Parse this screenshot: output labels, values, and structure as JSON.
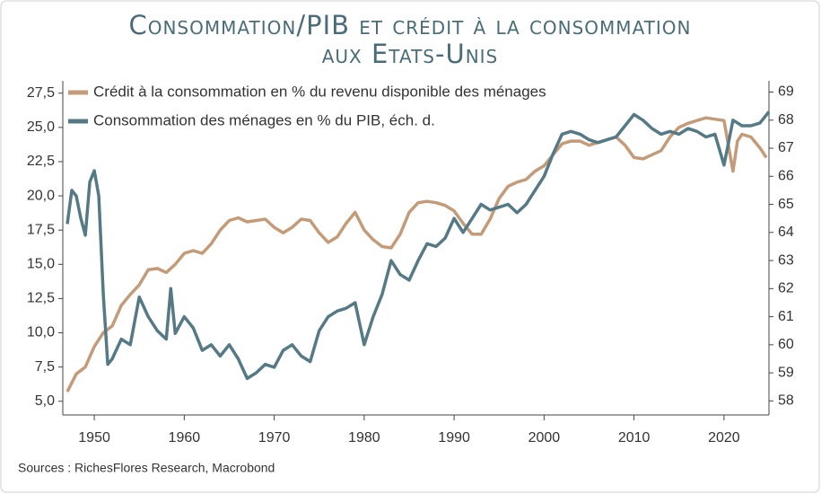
{
  "chart_data": {
    "type": "line",
    "title": [
      "Consommation/PIB et crédit à la consommation",
      "aux Etats-Unis"
    ],
    "source": "Sources : RichesFlores Research, Macrobond",
    "xlim": [
      1946.5,
      2025
    ],
    "xticks": [
      1950,
      1960,
      1970,
      1980,
      1990,
      2000,
      2010,
      2020
    ],
    "ylim": [
      4.0,
      28.4
    ],
    "yticks": [
      {
        "value": 5,
        "label": "5,0"
      },
      {
        "value": 7.5,
        "label": "7,5"
      },
      {
        "value": 10,
        "label": "10,0"
      },
      {
        "value": 12.5,
        "label": "12,5"
      },
      {
        "value": 15,
        "label": "15,0"
      },
      {
        "value": 17.5,
        "label": "17,5"
      },
      {
        "value": 20,
        "label": "20,0"
      },
      {
        "value": 22.5,
        "label": "22,5"
      },
      {
        "value": 25,
        "label": "25,0"
      },
      {
        "value": 27.5,
        "label": "27,5"
      }
    ],
    "y2lim": [
      57.5,
      69.4
    ],
    "y2ticks": [
      58,
      59,
      60,
      61,
      62,
      63,
      64,
      65,
      66,
      67,
      68,
      69
    ],
    "legend": "upper left",
    "series": [
      {
        "name": "Crédit à la consommation en % du revenu disponible des ménages",
        "color": "#c49b79",
        "x": [
          1947,
          1948,
          1949,
          1950,
          1951,
          1952,
          1953,
          1954,
          1955,
          1956,
          1957,
          1958,
          1959,
          1960,
          1961,
          1962,
          1963,
          1964,
          1965,
          1966,
          1967,
          1968,
          1969,
          1970,
          1971,
          1972,
          1973,
          1974,
          1975,
          1976,
          1977,
          1978,
          1979,
          1980,
          1981,
          1982,
          1983,
          1984,
          1985,
          1986,
          1987,
          1988,
          1989,
          1990,
          1991,
          1992,
          1993,
          1994,
          1995,
          1996,
          1997,
          1998,
          1999,
          2000,
          2001,
          2002,
          2003,
          2004,
          2005,
          2006,
          2007,
          2008,
          2009,
          2010,
          2011,
          2012,
          2013,
          2014,
          2015,
          2016,
          2017,
          2018,
          2019,
          2020,
          2021,
          2021.5,
          2022,
          2023,
          2024,
          2024.7
        ],
        "values": [
          5.7,
          7.0,
          7.5,
          9.0,
          10.0,
          10.5,
          12.0,
          12.8,
          13.5,
          14.6,
          14.7,
          14.4,
          15.0,
          15.8,
          16.0,
          15.8,
          16.5,
          17.5,
          18.2,
          18.4,
          18.1,
          18.2,
          18.3,
          17.7,
          17.3,
          17.7,
          18.3,
          18.2,
          17.3,
          16.6,
          17.0,
          18.0,
          18.8,
          17.5,
          16.8,
          16.3,
          16.2,
          17.2,
          18.8,
          19.5,
          19.6,
          19.5,
          19.3,
          18.9,
          18.0,
          17.2,
          17.2,
          18.3,
          19.8,
          20.7,
          21.0,
          21.2,
          21.8,
          22.2,
          23.0,
          23.8,
          24.0,
          24.0,
          23.7,
          23.9,
          24.1,
          24.3,
          23.7,
          22.8,
          22.7,
          23.0,
          23.3,
          24.3,
          25.0,
          25.3,
          25.5,
          25.7,
          25.6,
          25.5,
          21.8,
          24.0,
          24.5,
          24.3,
          23.5,
          22.8
        ]
      },
      {
        "name": "Consommation des ménages en % du PIB, éch. d.",
        "color": "#557a85",
        "axis": "y2",
        "x": [
          1947,
          1947.5,
          1948,
          1948.5,
          1949,
          1949.5,
          1950,
          1950.5,
          1951,
          1951.5,
          1952,
          1953,
          1954,
          1955,
          1956,
          1957,
          1958,
          1958.5,
          1959,
          1960,
          1961,
          1962,
          1963,
          1964,
          1965,
          1966,
          1967,
          1968,
          1969,
          1970,
          1971,
          1972,
          1973,
          1974,
          1975,
          1976,
          1977,
          1978,
          1979,
          1980,
          1981,
          1982,
          1983,
          1984,
          1985,
          1986,
          1987,
          1988,
          1989,
          1990,
          1991,
          1992,
          1993,
          1994,
          1995,
          1996,
          1997,
          1998,
          1999,
          2000,
          2001,
          2002,
          2003,
          2004,
          2005,
          2006,
          2007,
          2008,
          2009,
          2010,
          2011,
          2012,
          2013,
          2014,
          2015,
          2016,
          2017,
          2018,
          2019,
          2020,
          2021,
          2022,
          2023,
          2024,
          2025
        ],
        "values": [
          64.3,
          65.5,
          65.3,
          64.5,
          63.9,
          65.8,
          66.2,
          65.3,
          61.8,
          59.3,
          59.5,
          60.2,
          60.0,
          61.7,
          61.0,
          60.5,
          60.2,
          62.0,
          60.4,
          61.0,
          60.6,
          59.8,
          60.0,
          59.6,
          60.0,
          59.5,
          58.8,
          59.0,
          59.3,
          59.2,
          59.8,
          60.0,
          59.6,
          59.4,
          60.5,
          61.0,
          61.2,
          61.3,
          61.5,
          60.0,
          61.0,
          61.8,
          63.0,
          62.5,
          62.3,
          63.0,
          63.6,
          63.5,
          63.8,
          64.5,
          64.0,
          64.5,
          65.0,
          64.8,
          64.9,
          65.0,
          64.7,
          65.0,
          65.5,
          66.0,
          66.8,
          67.5,
          67.6,
          67.5,
          67.3,
          67.2,
          67.3,
          67.4,
          67.8,
          68.2,
          68.0,
          67.7,
          67.5,
          67.6,
          67.5,
          67.7,
          67.6,
          67.4,
          67.5,
          66.4,
          68.0,
          67.8,
          67.8,
          67.9,
          68.3
        ]
      }
    ]
  }
}
